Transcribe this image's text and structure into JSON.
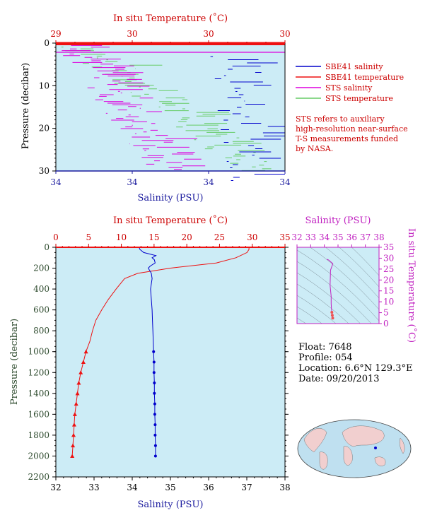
{
  "colors": {
    "panel_bg": "#ccecf6",
    "salinity": "#0000cc",
    "temperature": "#ee1111",
    "sts_salinity": "#dd00dd",
    "sts_temperature": "#66cc66",
    "ts_panel": "#c020c0"
  },
  "top": {
    "temp_label": "In situ Temperature (˚C)",
    "sal_label": "Salinity (PSU)",
    "y_label": "Pressure (decibar)",
    "temp_ticks": [
      "29",
      "30",
      "30",
      "30"
    ],
    "sal_ticks": [
      "34",
      "34",
      "34",
      "34"
    ],
    "y_ticks": [
      "0",
      "10",
      "20",
      "30"
    ]
  },
  "legend": {
    "items": [
      {
        "label": "SBE41 salinity",
        "color": "#0000cc"
      },
      {
        "label": "SBE41 temperature",
        "color": "#ee1111"
      },
      {
        "label": "STS salinity",
        "color": "#dd00dd"
      },
      {
        "label": "STS temperature",
        "color": "#66cc66"
      }
    ],
    "note": [
      "STS refers to auxiliary",
      "high-resolution near-surface",
      "T-S measurements funded",
      "by NASA."
    ]
  },
  "main": {
    "temp_label": "In situ Temperature (˚C)",
    "sal_label": "Salinity (PSU)",
    "y_label": "Pressure (decibar)",
    "temp_ticks": [
      "0",
      "5",
      "10",
      "15",
      "20",
      "25",
      "30",
      "35"
    ],
    "sal_ticks": [
      "32",
      "33",
      "34",
      "35",
      "36",
      "37",
      "38"
    ],
    "y_ticks": [
      "0",
      "200",
      "400",
      "600",
      "800",
      "1000",
      "1200",
      "1400",
      "1600",
      "1800",
      "2000",
      "2200"
    ]
  },
  "ts": {
    "sal_label": "Salinity (PSU)",
    "temp_label": "In situ Temperature (˚C)",
    "sal_ticks": [
      "32",
      "33",
      "34",
      "35",
      "36",
      "37",
      "38"
    ],
    "temp_ticks": [
      "0",
      "5",
      "10",
      "15",
      "20",
      "25",
      "30",
      "35"
    ]
  },
  "info": {
    "float": "Float:  7648",
    "profile": "Profile:  054",
    "location": "Location:  6.6°N  129.3°E",
    "date": "Date:  09/20/2013"
  },
  "chart_data": [
    {
      "type": "line",
      "title": "",
      "xlabel": "Salinity (PSU)",
      "x2label": "In situ Temperature (˚C)",
      "ylabel": "Pressure (decibar)",
      "ylim": [
        30,
        0
      ],
      "series": [
        {
          "name": "SBE41 salinity"
        },
        {
          "name": "SBE41 temperature"
        },
        {
          "name": "STS salinity"
        },
        {
          "name": "STS temperature"
        }
      ]
    },
    {
      "type": "line",
      "xlabel": "Salinity (PSU)",
      "x2label": "In situ Temperature (˚C)",
      "ylabel": "Pressure (decibar)",
      "xlim_salinity": [
        32,
        38
      ],
      "xlim_temperature": [
        0,
        35
      ],
      "ylim": [
        2200,
        0
      ],
      "temperature": {
        "p": [
          0,
          20,
          50,
          100,
          150,
          200,
          250,
          300,
          400,
          500,
          600,
          700,
          800,
          900,
          1000,
          1100,
          1200,
          1300,
          1400,
          1500,
          1600,
          1700,
          1800,
          1900,
          2000
        ],
        "v": [
          29.5,
          29.5,
          29.2,
          27.5,
          24.5,
          17.5,
          12.5,
          10.5,
          9.2,
          8.0,
          7.0,
          6.1,
          5.6,
          5.2,
          4.6,
          4.2,
          3.8,
          3.5,
          3.3,
          3.1,
          2.9,
          2.8,
          2.7,
          2.6,
          2.5
        ],
        "marker_from": 1000
      },
      "salinity": {
        "p": [
          0,
          20,
          50,
          80,
          100,
          120,
          150,
          180,
          200,
          250,
          300,
          400,
          500,
          600,
          700,
          800,
          900,
          1000,
          1100,
          1200,
          1300,
          1400,
          1500,
          1600,
          1700,
          1800,
          1900,
          2000
        ],
        "v": [
          34.18,
          34.2,
          34.3,
          34.62,
          34.52,
          34.58,
          34.6,
          34.47,
          34.42,
          34.5,
          34.52,
          34.48,
          34.5,
          34.52,
          34.53,
          34.54,
          34.55,
          34.56,
          34.57,
          34.57,
          34.58,
          34.58,
          34.59,
          34.59,
          34.6,
          34.6,
          34.61,
          34.61
        ],
        "marker_from": 1000
      }
    },
    {
      "type": "scatter",
      "xlabel": "Salinity (PSU)",
      "ylabel": "In situ Temperature (˚C)",
      "xlim": [
        32,
        38
      ],
      "ylim": [
        0,
        35
      ],
      "x": [
        34.18,
        34.3,
        34.62,
        34.45,
        34.42,
        34.5,
        34.5,
        34.52,
        34.55,
        34.58,
        34.61
      ],
      "y": [
        29.5,
        29.2,
        27.5,
        24.5,
        17.5,
        12.5,
        9.2,
        7.0,
        5.2,
        3.8,
        2.5
      ]
    }
  ]
}
